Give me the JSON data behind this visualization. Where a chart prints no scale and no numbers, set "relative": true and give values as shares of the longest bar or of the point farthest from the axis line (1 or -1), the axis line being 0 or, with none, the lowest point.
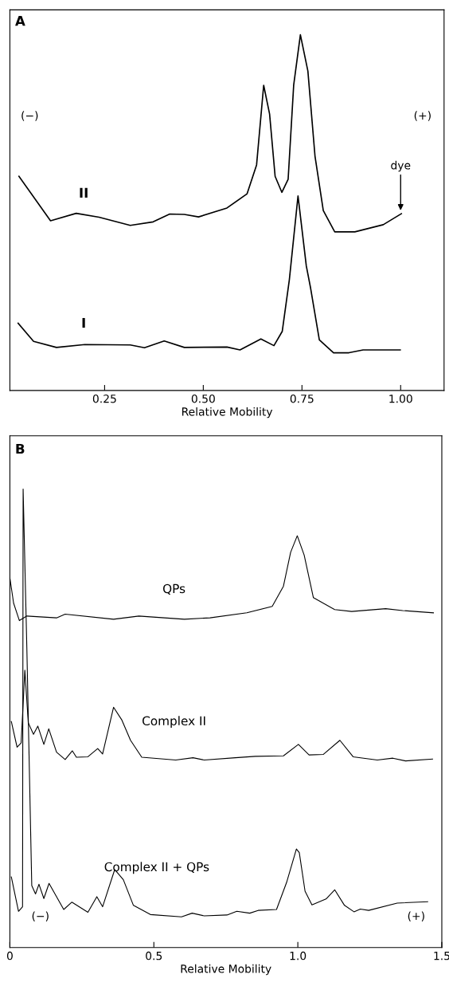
{
  "chart_data": [
    {
      "type": "line",
      "title": "A",
      "xlabel": "Relative Mobility",
      "relative": true,
      "xlim": [
        0.01,
        1.11
      ],
      "xticks": [
        {
          "value": 0.25,
          "label": "0.25"
        },
        {
          "value": 0.5,
          "label": "0.50"
        },
        {
          "value": 0.75,
          "label": "0.75"
        },
        {
          "value": 1.0,
          "label": "1.00"
        }
      ],
      "series": [
        {
          "name": "II",
          "color": "#000000",
          "x": [
            0.033,
            0.113,
            0.178,
            0.236,
            0.315,
            0.373,
            0.415,
            0.452,
            0.488,
            0.56,
            0.611,
            0.635,
            0.653,
            0.668,
            0.682,
            0.699,
            0.715,
            0.729,
            0.746,
            0.765,
            0.783,
            0.804,
            0.833,
            0.884,
            0.956,
            1.002
          ],
          "values": [
            0.602,
            0.477,
            0.498,
            0.487,
            0.464,
            0.474,
            0.496,
            0.495,
            0.488,
            0.513,
            0.553,
            0.634,
            0.858,
            0.777,
            0.602,
            0.557,
            0.594,
            0.858,
            1.0,
            0.898,
            0.659,
            0.506,
            0.446,
            0.446,
            0.466,
            0.497
          ]
        },
        {
          "name": "I",
          "color": "#000000",
          "x": [
            0.031,
            0.07,
            0.128,
            0.2,
            0.315,
            0.351,
            0.401,
            0.452,
            0.56,
            0.593,
            0.646,
            0.679,
            0.7,
            0.718,
            0.74,
            0.761,
            0.772,
            0.794,
            0.83,
            0.869,
            0.905,
            0.999
          ],
          "values": [
            0.189,
            0.138,
            0.121,
            0.129,
            0.128,
            0.12,
            0.139,
            0.121,
            0.122,
            0.114,
            0.145,
            0.126,
            0.166,
            0.311,
            0.547,
            0.35,
            0.287,
            0.142,
            0.106,
            0.106,
            0.114,
            0.114
          ]
        }
      ],
      "annotations": [
        {
          "text": "dye",
          "x": 1.0,
          "y": 0.497
        },
        "(−)",
        "(+)"
      ]
    },
    {
      "type": "line",
      "title": "B",
      "xlabel": "Relative Mobility",
      "relative": true,
      "xlim": [
        0,
        1.5
      ],
      "xticks": [
        0,
        0.5,
        {
          "value": 1.0,
          "label": "1.0"
        },
        1.5
      ],
      "series": [
        {
          "name": "QPs",
          "color": "#000000",
          "x": [
            0.0,
            0.013,
            0.033,
            0.059,
            0.162,
            0.192,
            0.36,
            0.448,
            0.606,
            0.695,
            0.823,
            0.911,
            0.95,
            0.975,
            0.998,
            1.022,
            1.054,
            1.128,
            1.187,
            1.305,
            1.364,
            1.471
          ],
          "values": [
            0.806,
            0.751,
            0.713,
            0.723,
            0.719,
            0.727,
            0.716,
            0.723,
            0.716,
            0.719,
            0.73,
            0.744,
            0.788,
            0.862,
            0.898,
            0.856,
            0.763,
            0.737,
            0.733,
            0.739,
            0.735,
            0.73
          ]
        },
        {
          "name": "Complex II",
          "color": "#000000",
          "x": [
            0.005,
            0.025,
            0.039,
            0.052,
            0.064,
            0.082,
            0.097,
            0.118,
            0.135,
            0.162,
            0.192,
            0.217,
            0.231,
            0.271,
            0.305,
            0.322,
            0.36,
            0.389,
            0.419,
            0.458,
            0.576,
            0.636,
            0.675,
            0.783,
            0.852,
            0.95,
            1.002,
            1.039,
            1.088,
            1.146,
            1.192,
            1.276,
            1.33,
            1.374,
            1.468
          ],
          "values": [
            0.493,
            0.437,
            0.446,
            0.605,
            0.49,
            0.465,
            0.483,
            0.443,
            0.477,
            0.426,
            0.41,
            0.429,
            0.415,
            0.416,
            0.434,
            0.422,
            0.524,
            0.496,
            0.452,
            0.415,
            0.409,
            0.414,
            0.409,
            0.414,
            0.417,
            0.418,
            0.443,
            0.42,
            0.421,
            0.452,
            0.416,
            0.409,
            0.413,
            0.407,
            0.411
          ]
        },
        {
          "name": "Complex II + QPs",
          "color": "#000000",
          "x": [
            0.005,
            0.03,
            0.044,
            0.046,
            0.059,
            0.076,
            0.089,
            0.101,
            0.118,
            0.136,
            0.187,
            0.215,
            0.271,
            0.302,
            0.322,
            0.364,
            0.394,
            0.429,
            0.488,
            0.596,
            0.633,
            0.675,
            0.754,
            0.788,
            0.833,
            0.862,
            0.926,
            0.961,
            0.995,
            1.005,
            1.025,
            1.049,
            1.098,
            1.128,
            1.162,
            1.195,
            1.217,
            1.246,
            1.345,
            1.451
          ],
          "values": [
            0.154,
            0.079,
            0.089,
            1.0,
            0.651,
            0.135,
            0.117,
            0.138,
            0.107,
            0.14,
            0.083,
            0.099,
            0.077,
            0.111,
            0.089,
            0.17,
            0.148,
            0.092,
            0.072,
            0.067,
            0.075,
            0.069,
            0.071,
            0.079,
            0.075,
            0.081,
            0.083,
            0.142,
            0.215,
            0.207,
            0.123,
            0.093,
            0.106,
            0.126,
            0.092,
            0.078,
            0.084,
            0.081,
            0.097,
            0.1
          ]
        }
      ],
      "annotations": [
        "(−)",
        "(+)"
      ]
    }
  ]
}
